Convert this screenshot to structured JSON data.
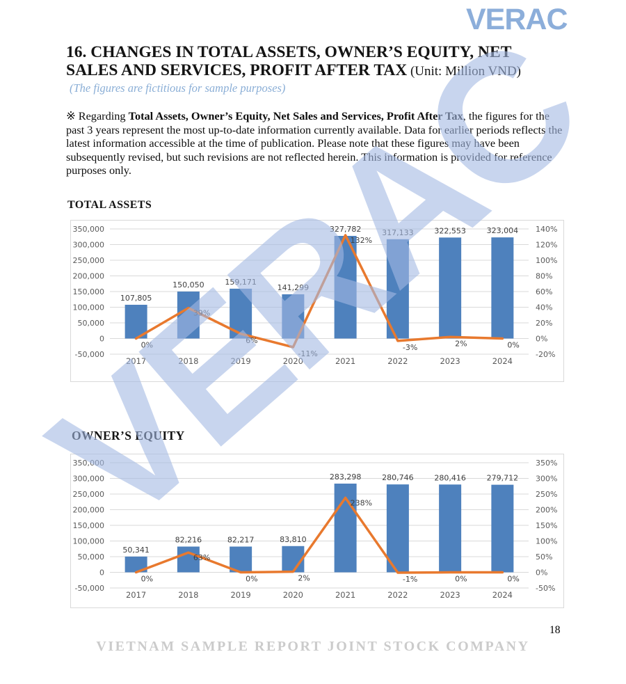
{
  "logo": "VERAC",
  "watermark": "VERAC",
  "title": {
    "line1": "16. CHANGES IN TOTAL ASSETS, OWNER’S EQUITY, NET",
    "line2": "SALES AND SERVICES, PROFIT AFTER TAX",
    "unit": " (Unit: Million VND)"
  },
  "subtitle": "(The figures are fictitious for sample purposes)",
  "note": {
    "prefix": "※ Regarding ",
    "bold": "Total Assets, Owner’s Equity, Net Sales and Services, Profit After Tax",
    "rest": ", the figures for the past 3 years represent the most up-to-date information currently available. Data for earlier periods reflects the latest information accessible at the time of publication. Please note that these figures may have been subsequently revised, but such revisions are not reflected herein. This information is provided for reference purposes only."
  },
  "footer": {
    "company": "VIETNAM SAMPLE REPORT JOINT STOCK COMPANY",
    "page": "18"
  },
  "colors": {
    "bar": "#4e81bd",
    "line": "#e8792e",
    "grid": "#d9d9d9",
    "axis_text": "#595959",
    "label_text": "#3f3f3f",
    "logo": "#8caeda",
    "watermark": "#c9d7ef",
    "subtitle": "#8aaed6",
    "footer": "#cbcbcb"
  },
  "chart_data": [
    {
      "type": "bar",
      "subtype": "bar+line-combo",
      "title": "TOTAL ASSETS",
      "categories": [
        "2017",
        "2018",
        "2019",
        "2020",
        "2021",
        "2022",
        "2023",
        "2024"
      ],
      "series": [
        {
          "name": "Total Assets",
          "type": "bar",
          "values": [
            107805,
            150050,
            159171,
            141299,
            327782,
            317133,
            322553,
            323004
          ],
          "labels": [
            "107,805",
            "150,050",
            "159,171",
            "141,299",
            "327,782",
            "317,133",
            "322,553",
            "323,004"
          ]
        },
        {
          "name": "Growth %",
          "type": "line",
          "values": [
            0,
            39,
            6,
            -11,
            132,
            -3,
            2,
            0
          ],
          "labels": [
            "0%",
            "39%",
            "6%",
            "-11%",
            "132%",
            "-3%",
            "2%",
            "0%"
          ]
        }
      ],
      "y_left": {
        "min": -50000,
        "max": 350000,
        "step": 50000,
        "ticks": [
          "350,000",
          "300,000",
          "250,000",
          "200,000",
          "150,000",
          "100,000",
          "50,000",
          "0",
          "-50,000"
        ]
      },
      "y_right": {
        "min": -20,
        "max": 140,
        "step": 20,
        "ticks": [
          "140%",
          "120%",
          "100%",
          "80%",
          "60%",
          "40%",
          "20%",
          "0%",
          "-20%"
        ]
      },
      "grid": true,
      "legend": "none"
    },
    {
      "type": "bar",
      "subtype": "bar+line-combo",
      "title": "OWNER’S EQUITY",
      "categories": [
        "2017",
        "2018",
        "2019",
        "2020",
        "2021",
        "2022",
        "2023",
        "2024"
      ],
      "series": [
        {
          "name": "Owner's Equity",
          "type": "bar",
          "values": [
            50341,
            82216,
            82217,
            83810,
            283298,
            280746,
            280416,
            279712
          ],
          "labels": [
            "50,341",
            "82,216",
            "82,217",
            "83,810",
            "283,298",
            "280,746",
            "280,416",
            "279,712"
          ]
        },
        {
          "name": "Growth %",
          "type": "line",
          "values": [
            0,
            63,
            0,
            2,
            238,
            -1,
            0,
            0
          ],
          "labels": [
            "0%",
            "63%",
            "0%",
            "2%",
            "238%",
            "-1%",
            "0%",
            "0%"
          ]
        }
      ],
      "y_left": {
        "min": -50000,
        "max": 350000,
        "step": 50000,
        "ticks": [
          "350,000",
          "300,000",
          "250,000",
          "200,000",
          "150,000",
          "100,000",
          "50,000",
          "0",
          "-50,000"
        ]
      },
      "y_right": {
        "min": -50,
        "max": 350,
        "step": 50,
        "ticks": [
          "350%",
          "300%",
          "250%",
          "200%",
          "150%",
          "100%",
          "50%",
          "0%",
          "-50%"
        ]
      },
      "grid": true,
      "legend": "none"
    }
  ]
}
